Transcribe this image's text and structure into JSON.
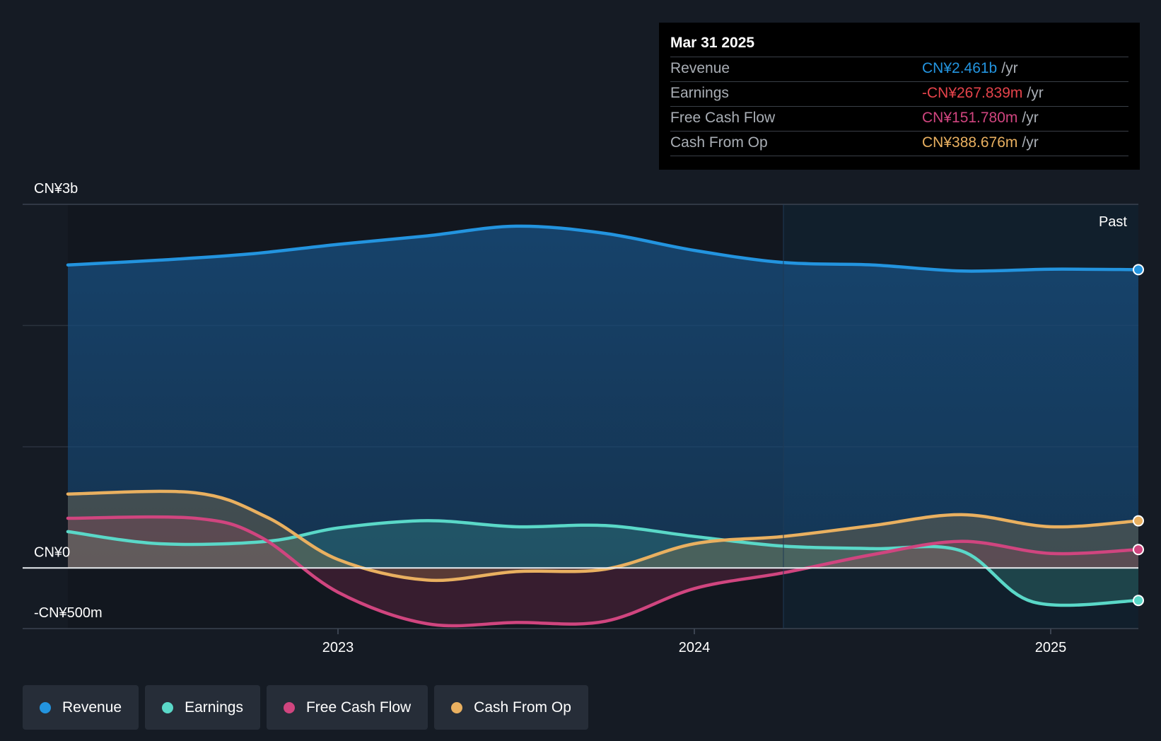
{
  "chart_data": {
    "type": "area",
    "y_unit": "CN¥m",
    "ylim": [
      -500,
      3000
    ],
    "y_ticks": [
      {
        "value": 3000,
        "label": "CN¥3b"
      },
      {
        "value": 0,
        "label": "CN¥0"
      },
      {
        "value": -500,
        "label": "-CN¥500m"
      }
    ],
    "y_gridlines": [
      3000,
      2000,
      1000,
      0,
      -500
    ],
    "x_range": [
      2022.33,
      2025.25
    ],
    "x_ticks": [
      {
        "value": 2023.0,
        "label": "2023"
      },
      {
        "value": 2024.0,
        "label": "2024"
      },
      {
        "value": 2025.0,
        "label": "2025"
      }
    ],
    "past_region_start": 2024.25,
    "past_label": "Past",
    "series": [
      {
        "name": "Revenue",
        "color": "#2394df",
        "points": [
          [
            2022.33,
            2500
          ],
          [
            2022.5,
            2540
          ],
          [
            2022.75,
            2590
          ],
          [
            2023.0,
            2670
          ],
          [
            2023.25,
            2740
          ],
          [
            2023.5,
            2820
          ],
          [
            2023.75,
            2760
          ],
          [
            2024.0,
            2620
          ],
          [
            2024.25,
            2520
          ],
          [
            2024.5,
            2500
          ],
          [
            2024.75,
            2450
          ],
          [
            2025.0,
            2465
          ],
          [
            2025.25,
            2461
          ]
        ]
      },
      {
        "name": "Earnings",
        "color": "#5ad8c8",
        "points": [
          [
            2022.33,
            300
          ],
          [
            2022.5,
            200
          ],
          [
            2022.8,
            220
          ],
          [
            2023.0,
            330
          ],
          [
            2023.25,
            390
          ],
          [
            2023.5,
            340
          ],
          [
            2023.75,
            350
          ],
          [
            2024.0,
            260
          ],
          [
            2024.25,
            180
          ],
          [
            2024.5,
            160
          ],
          [
            2024.75,
            140
          ],
          [
            2024.95,
            -280
          ],
          [
            2025.25,
            -268
          ]
        ]
      },
      {
        "name": "Free Cash Flow",
        "color": "#d0457f",
        "points": [
          [
            2022.33,
            410
          ],
          [
            2022.6,
            410
          ],
          [
            2022.78,
            260
          ],
          [
            2023.0,
            -200
          ],
          [
            2023.25,
            -460
          ],
          [
            2023.5,
            -450
          ],
          [
            2023.75,
            -440
          ],
          [
            2024.0,
            -170
          ],
          [
            2024.25,
            -40
          ],
          [
            2024.5,
            110
          ],
          [
            2024.75,
            220
          ],
          [
            2025.0,
            120
          ],
          [
            2025.25,
            152
          ]
        ]
      },
      {
        "name": "Cash From Op",
        "color": "#e9b060",
        "points": [
          [
            2022.33,
            610
          ],
          [
            2022.6,
            620
          ],
          [
            2022.8,
            420
          ],
          [
            2023.0,
            70
          ],
          [
            2023.25,
            -100
          ],
          [
            2023.5,
            -30
          ],
          [
            2023.75,
            -10
          ],
          [
            2024.0,
            200
          ],
          [
            2024.25,
            260
          ],
          [
            2024.5,
            350
          ],
          [
            2024.75,
            440
          ],
          [
            2025.0,
            340
          ],
          [
            2025.25,
            389
          ]
        ]
      }
    ]
  },
  "tooltip": {
    "date": "Mar 31 2025",
    "unit": "/yr",
    "rows": [
      {
        "name": "Revenue",
        "value": "CN¥2.461b",
        "color": "#2394df"
      },
      {
        "name": "Earnings",
        "value": "-CN¥267.839m",
        "color": "#e5434b"
      },
      {
        "name": "Free Cash Flow",
        "value": "CN¥151.780m",
        "color": "#d0457f"
      },
      {
        "name": "Cash From Op",
        "value": "CN¥388.676m",
        "color": "#e9b060"
      }
    ]
  },
  "legend": [
    {
      "label": "Revenue",
      "color": "#2394df"
    },
    {
      "label": "Earnings",
      "color": "#5ad8c8"
    },
    {
      "label": "Free Cash Flow",
      "color": "#d0457f"
    },
    {
      "label": "Cash From Op",
      "color": "#e9b060"
    }
  ]
}
